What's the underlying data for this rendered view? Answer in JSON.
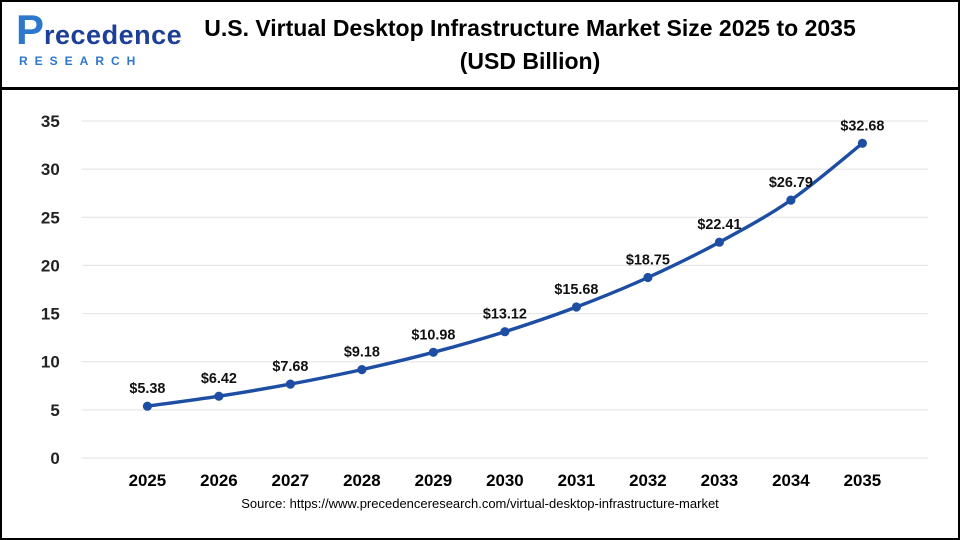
{
  "logo": {
    "p": "P",
    "name": "recedence",
    "sub": "RESEARCH"
  },
  "header": {
    "title_line1": "U.S. Virtual Desktop Infrastructure Market Size 2025 to 2035",
    "title_line2": "(USD Billion)"
  },
  "source": {
    "text": "Source: https://www.precedenceresearch.com/virtual-desktop-infrastructure-market"
  },
  "chart_data": {
    "type": "line",
    "title": "U.S. Virtual Desktop Infrastructure Market Size 2025 to 2035 (USD Billion)",
    "categories": [
      "2025",
      "2026",
      "2027",
      "2028",
      "2029",
      "2030",
      "2031",
      "2032",
      "2033",
      "2034",
      "2035"
    ],
    "values": [
      5.38,
      6.42,
      7.68,
      9.18,
      10.98,
      13.12,
      15.68,
      18.75,
      22.41,
      26.79,
      32.68
    ],
    "labels": [
      "$5.38",
      "$6.42",
      "$7.68",
      "$9.18",
      "$10.98",
      "$13.12",
      "$15.68",
      "$18.75",
      "$22.41",
      "$26.79",
      "$32.68"
    ],
    "xlabel": "",
    "ylabel": "",
    "ylim": [
      0,
      35
    ],
    "yticks": [
      0,
      5,
      10,
      15,
      20,
      25,
      30,
      35
    ],
    "grid": true,
    "legend": "none",
    "line_color": "#1e4ea3",
    "grid_color": "#e2e2e2",
    "marker": "circle"
  }
}
